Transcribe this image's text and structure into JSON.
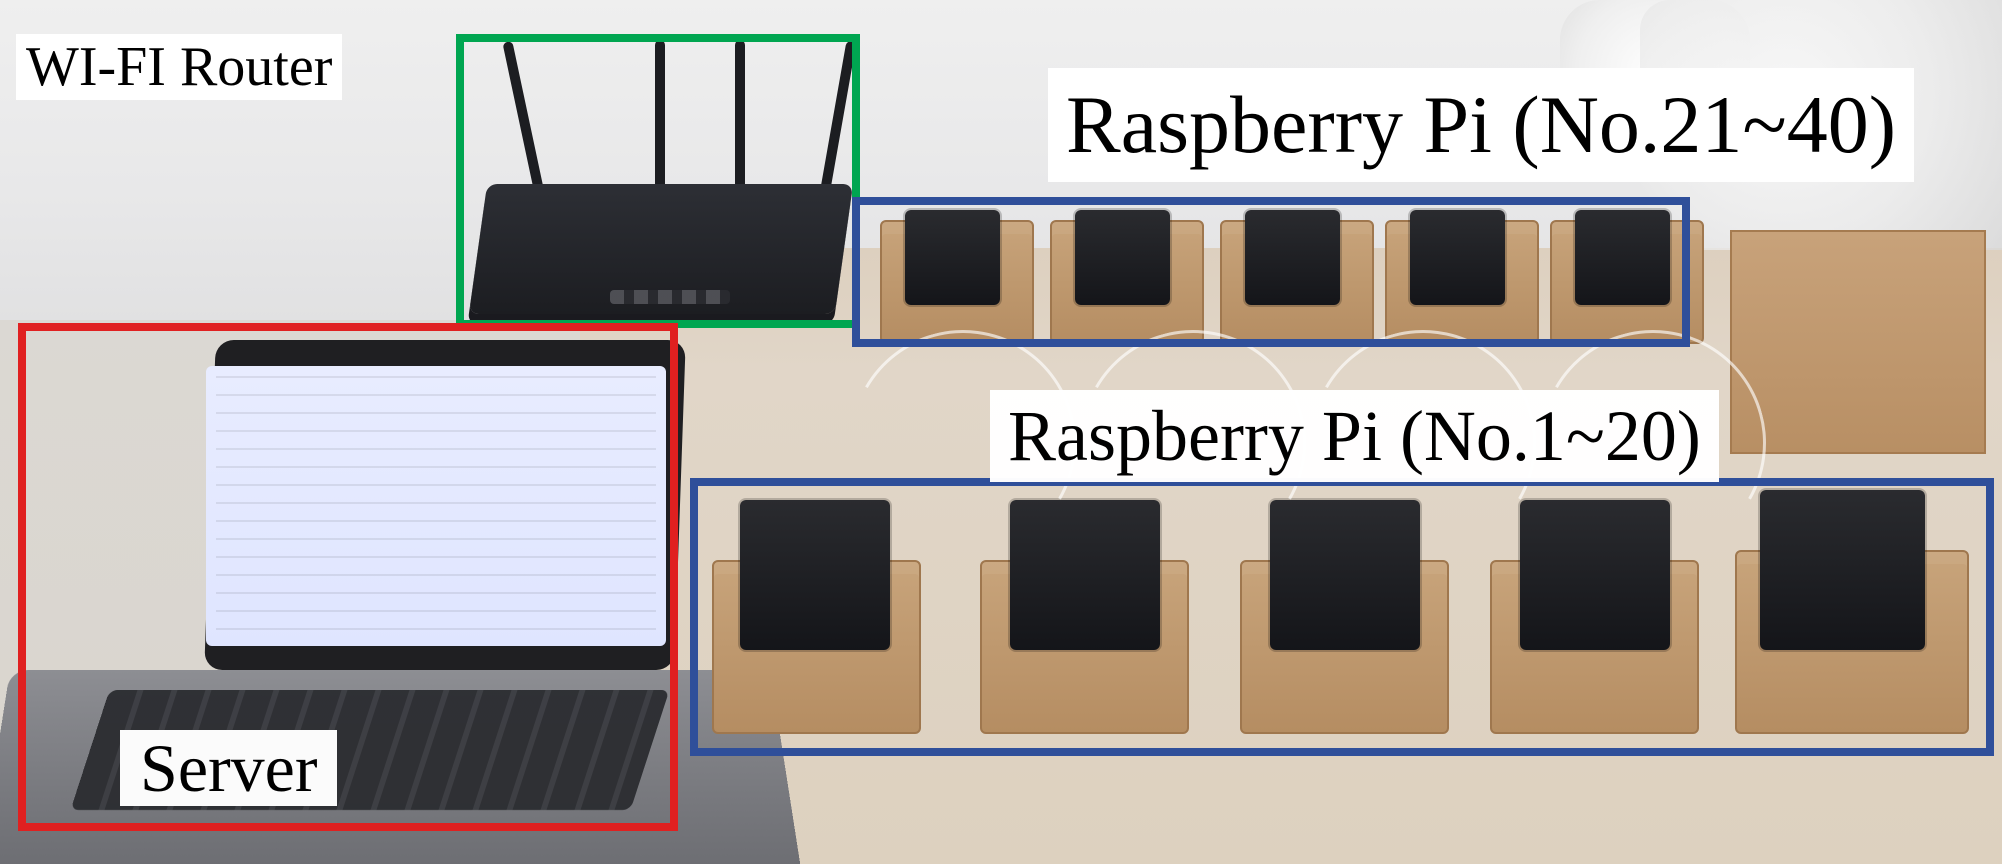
{
  "scene": {
    "labels": {
      "router": "WI-FI Router",
      "server": "Server",
      "pi_top": "Raspberry Pi (No.21~40)",
      "pi_bottom": "Raspberry Pi (No.1~20)"
    },
    "colors": {
      "router_box": "#00a651",
      "server_box": "#e02020",
      "pi_boxes": "#2f4f9a"
    }
  }
}
